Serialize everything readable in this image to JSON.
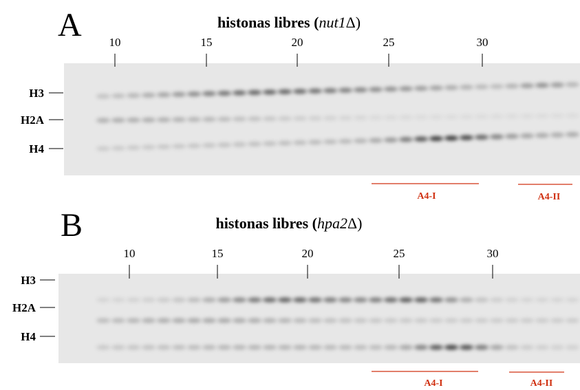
{
  "panels": [
    {
      "letter": "A",
      "title": {
        "prefix": "histonas libres (",
        "italic": "nut1",
        "suffix": "Δ)"
      },
      "fractions": [
        "10",
        "15",
        "20",
        "25",
        "30"
      ],
      "bands": [
        "H3",
        "H2A",
        "H4"
      ],
      "pools": [
        "A4-I",
        "A4-II"
      ]
    },
    {
      "letter": "B",
      "title": {
        "prefix": "histonas libres (",
        "italic": "hpa2",
        "suffix": "Δ)"
      },
      "fractions": [
        "10",
        "15",
        "20",
        "25",
        "30"
      ],
      "bands": [
        "H3",
        "H2A",
        "H4"
      ],
      "pools": [
        "A4-I",
        "A4-II"
      ]
    }
  ]
}
